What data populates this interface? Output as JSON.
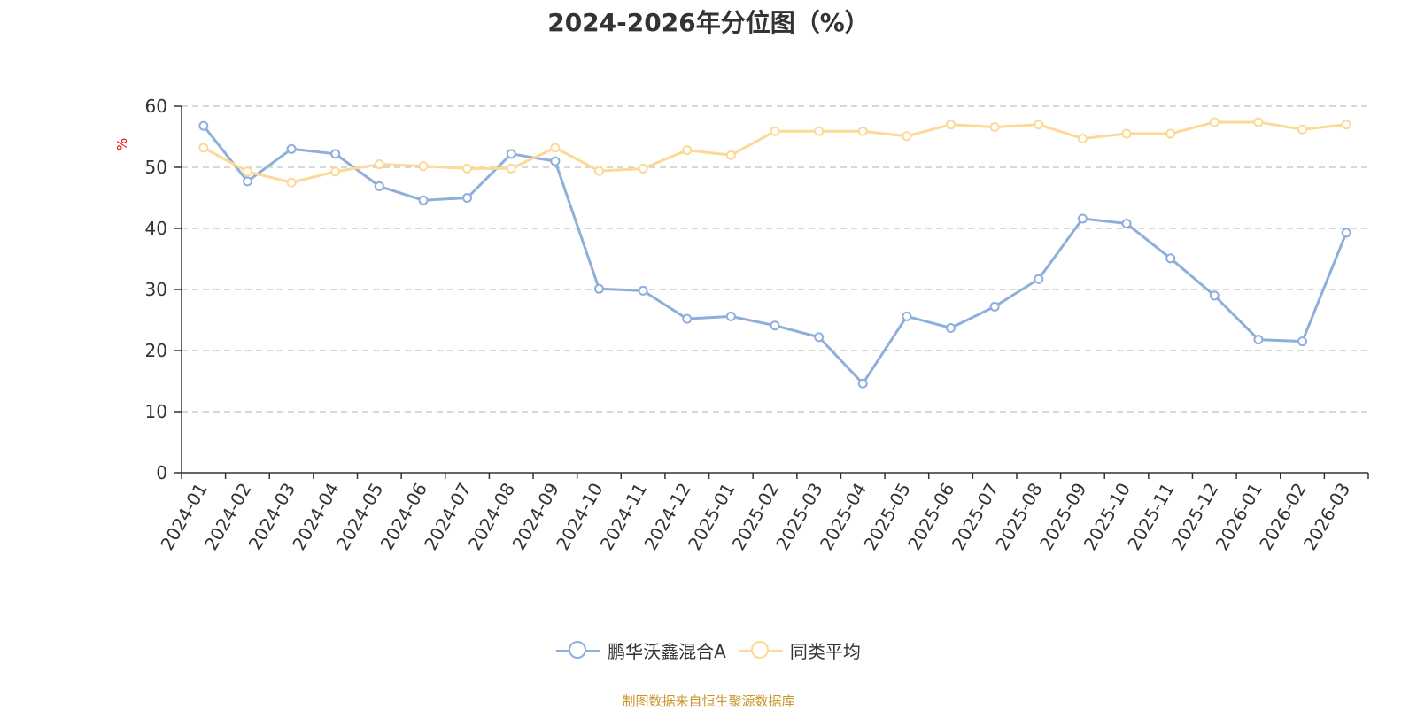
{
  "title": "2024-2026年分位图（%）",
  "source_text": "制图数据来自恒生聚源数据库",
  "chart_data": {
    "type": "line",
    "title": "2024-2026年分位图（%）",
    "ylabel": "%",
    "xlabel": "",
    "ylim": [
      0,
      60
    ],
    "yticks": [
      0,
      10,
      20,
      30,
      40,
      50,
      60
    ],
    "grid": true,
    "legend_position": "bottom-center",
    "categories": [
      "2024-01",
      "2024-02",
      "2024-03",
      "2024-04",
      "2024-05",
      "2024-06",
      "2024-07",
      "2024-08",
      "2024-09",
      "2024-10",
      "2024-11",
      "2024-12",
      "2025-01",
      "2025-02",
      "2025-03",
      "2025-04",
      "2025-05",
      "2025-06",
      "2025-07",
      "2025-08",
      "2025-09",
      "2025-10",
      "2025-11",
      "2025-12",
      "2026-01",
      "2026-02",
      "2026-03"
    ],
    "series": [
      {
        "name": "鹏华沃鑫混合A",
        "color": "#8eaedb",
        "values": [
          56.8,
          47.7,
          53.0,
          52.2,
          46.9,
          44.6,
          45.0,
          52.2,
          51.0,
          30.1,
          29.8,
          25.2,
          25.6,
          24.1,
          22.2,
          14.6,
          25.6,
          23.7,
          27.2,
          31.7,
          41.6,
          40.8,
          35.1,
          29.0,
          21.8,
          21.5,
          39.3
        ]
      },
      {
        "name": "同类平均",
        "color": "#fcd995",
        "values": [
          53.2,
          49.3,
          47.5,
          49.3,
          50.5,
          50.2,
          49.8,
          49.8,
          53.2,
          49.4,
          49.8,
          52.8,
          52.0,
          55.9,
          55.9,
          55.9,
          55.1,
          57.0,
          56.6,
          57.0,
          54.7,
          55.5,
          55.5,
          57.4,
          57.4,
          56.2,
          57.0
        ]
      }
    ]
  }
}
